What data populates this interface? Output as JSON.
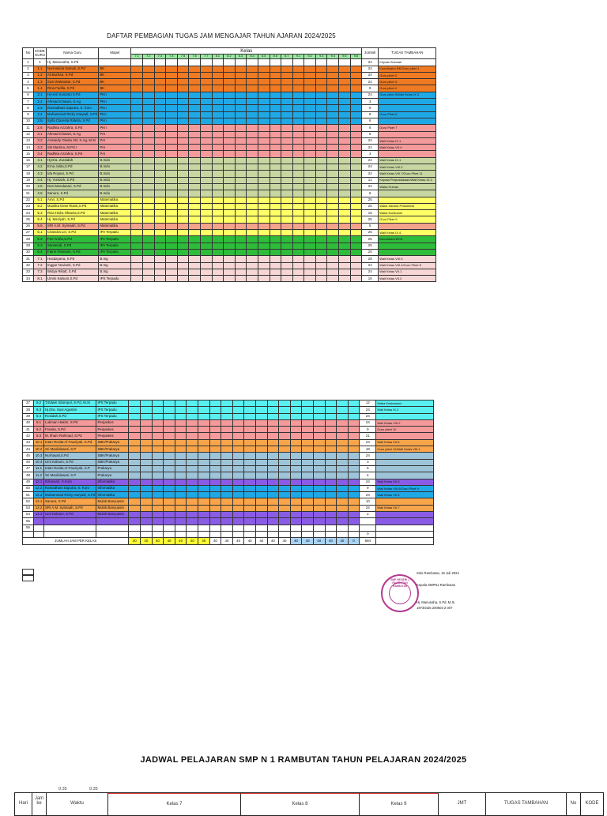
{
  "title": "DAFTAR PEMBAGIAN TUGAS JAM MENGAJAR TAHUN AJARAN 2024/2025",
  "headers": {
    "no": "No",
    "kode_guru": "KODE GURU",
    "nama_guru": "Nama Guru",
    "mapel": "Mapel",
    "kelas": "Kelas",
    "jumlah": "Jumlah",
    "tugas_tambahan": "TUGAS TAMBAHAN",
    "kelas_list": [
      "7.1",
      "7.2",
      "7.3",
      "7.4",
      "7.5",
      "7.6",
      "7.7",
      "8.1",
      "8.2",
      "8.3",
      "8.4",
      "8.5",
      "8.6",
      "8.7",
      "9.1",
      "9.2",
      "9.3",
      "9.4",
      "9.5",
      "9.6"
    ]
  },
  "rows_top": [
    {
      "no": "1",
      "kode": "1",
      "nama": "Hj. Manunaha, S.Pd",
      "mapel": "",
      "color": "#ffffff",
      "cells": {},
      "jumlah": "24",
      "tugas": "Kepala Sekolah"
    },
    {
      "no": "2",
      "kode": "1.1",
      "nama": "Nurmasida Nainali, S.Pd",
      "mapel": "BK",
      "color": "#f07a22",
      "cells": {
        "8.1": "v",
        "8.2": "v",
        "8.3": "v",
        "8.4": "v",
        "8.5": "v",
        "8.6": "v"
      },
      "jumlah": "24",
      "tugas": "Koordinator BK/Guru piket 1"
    },
    {
      "no": "3",
      "kode": "1.2",
      "nama": "Ali Burhan, S.Pd",
      "mapel": "BK",
      "color": "#f07a22",
      "cells": {
        "8.7": "v",
        "9.1": "v",
        "9.2": "v",
        "9.3": "v",
        "9.4": "v",
        "9.5": "v"
      },
      "jumlah": "24",
      "tugas": "Guru piket 2"
    },
    {
      "no": "4",
      "kode": "1.3",
      "nama": "Susi Wulandari, S.Pd",
      "mapel": "BK",
      "color": "#f07a22",
      "cells": {
        "7.1": "v",
        "7.2": "v",
        "7.3": "v",
        "7.4": "v",
        "7.5": "v"
      },
      "jumlah": "24",
      "tugas": "Guru piket 3"
    },
    {
      "no": "5",
      "kode": "1.4",
      "nama": "Rina Fadila, S.Pd",
      "mapel": "BK",
      "color": "#f07a22",
      "cells": {
        "7.6": "v",
        "7.7": "v"
      },
      "jumlah": "9",
      "tugas": "Guru piket 4"
    },
    {
      "no": "6",
      "kode": "2.1",
      "nama": "Hj Heri Susanto S.Pd",
      "mapel": "PKn",
      "color": "#1fa8e6",
      "cells": {
        "8.1": "3",
        "8.2": "3",
        "8.3": "3",
        "8.4": "3",
        "9.1": "3",
        "9.2": "3",
        "9.3": "3",
        "9.4": "3"
      },
      "jumlah": "24",
      "tugas": "Guru piket 5/Wali Kelas IX.3"
    },
    {
      "no": "7",
      "kode": "2.2",
      "nama": "Ahmad Ichwani, S.Ag",
      "mapel": "PKn",
      "color": "#1fa8e6",
      "cells": {
        "8.7": "3"
      },
      "jumlah": "3",
      "tugas": ""
    },
    {
      "no": "8",
      "kode": "2.3",
      "nama": "Ramadhani Saputra, S. Kom",
      "mapel": "PKn",
      "color": "#1fa8e6",
      "cells": {
        "7.4": "3",
        "7.6": "3",
        "7.7": "3"
      },
      "jumlah": "9",
      "tugas": ""
    },
    {
      "no": "9",
      "kode": "2.4",
      "nama": "Muhammad Ricky Haryadi, S.Pd",
      "mapel": "PKn",
      "color": "#1fa8e6",
      "cells": {
        "7.2": "3",
        "7.3": "3",
        "7.5": "3"
      },
      "jumlah": "9",
      "tugas": "Guru Piket 6"
    },
    {
      "no": "10",
      "kode": "2.5",
      "nama": "Syifa Claresta Ridella, S.Pd",
      "mapel": "PKn",
      "color": "#1fa8e6",
      "cells": {
        "8.6": "3",
        "8.7": "3"
      },
      "jumlah": "6",
      "tugas": ""
    },
    {
      "no": "11",
      "kode": "2.6",
      "nama": "Radhita Azzahra, S.Pd",
      "mapel": "PKn",
      "color": "#f59a9a",
      "cells": {
        "7.1": "3",
        "8.6": "3"
      },
      "jumlah": "6",
      "tugas": "Guru Piket 7"
    },
    {
      "no": "12",
      "kode": "3.1",
      "nama": "Ahmad Ichwani, S.Ag",
      "mapel": "PAI",
      "color": "#f59a9a",
      "cells": {
        "8.1": "3",
        "8.6": "3"
      },
      "jumlah": "6",
      "tugas": ""
    },
    {
      "no": "13",
      "kode": "3.2",
      "nama": "Arsiandy Olusta JM, S.Ag, M.Si",
      "mapel": "PAI",
      "color": "#f59a9a",
      "cells": {
        "7.5": "3",
        "8.2": "3",
        "8.3": "3",
        "8.4": "3",
        "8.5": "3",
        "9.1": "3",
        "9.2": "3"
      },
      "jumlah": "24",
      "tugas": "Wali Kelas IX.1"
    },
    {
      "no": "14",
      "kode": "3.3",
      "nama": "Siti Martina, M.Pd.I",
      "mapel": "PAI",
      "color": "#f59a9a",
      "cells": {
        "7.1": "3",
        "7.2": "3",
        "7.3": "3",
        "7.4": "3",
        "8.6": "3",
        "9.3": "3",
        "9.4": "3",
        "9.5": "3"
      },
      "jumlah": "24",
      "tugas": "Wali Kelas VII.4"
    },
    {
      "no": "15",
      "kode": "3.4",
      "nama": "Radhita Azzahra, S.Pd",
      "mapel": "PAI",
      "color": "#f59a9a",
      "cells": {
        "7.6": "3"
      },
      "jumlah": "3",
      "tugas": ""
    },
    {
      "no": "16",
      "kode": "4.1",
      "nama": "Hj.Dra. Zuraidah",
      "mapel": "B.Indo",
      "color": "#c8d7a1",
      "cells": {
        "8.1": "6",
        "9.3": "6",
        "9.4": "6"
      },
      "jumlah": "24",
      "tugas": "Wali Kelas IX.1"
    },
    {
      "no": "17",
      "kode": "4.2",
      "nama": "Erna Julita,S.Pd",
      "mapel": "B.Indo",
      "color": "#c8d7a1",
      "cells": {
        "7.5": "6",
        "7.6": "6",
        "7.7": "6",
        "8.2": "6"
      },
      "jumlah": "24",
      "tugas": "Wali Kelas VIII.2"
    },
    {
      "no": "18",
      "kode": "4.3",
      "nama": "Ida Royani, S.Pd",
      "mapel": "B.Indo",
      "color": "#c8d7a1",
      "cells": {
        "8.3": "6",
        "8.5": "6",
        "8.6": "6",
        "8.7": "6"
      },
      "jumlah": "24",
      "tugas": "Wali Kelas VIII.7/Guru Piket 11"
    },
    {
      "no": "19",
      "kode": "4.4",
      "nama": "Hj. Yunizah, S.Pd",
      "mapel": "B.Indo",
      "color": "#c8d7a1",
      "cells": {
        "9.2": "6",
        "9.3": "6"
      },
      "jumlah": "12",
      "tugas": "Kepala Perpustakaan/Wali Kelas IX.3"
    },
    {
      "no": "20",
      "kode": "4.5",
      "nama": "Desi Mendasari, S.Pd",
      "mapel": "B.Indo",
      "color": "#c8d7a1",
      "cells": {
        "7.1": "6",
        "7.2": "6",
        "7.3": "6",
        "7.4": "6"
      },
      "jumlah": "24",
      "tugas": "Waka Humas"
    },
    {
      "no": "21",
      "kode": "4.6",
      "nama": "Sanura, S.Pd",
      "mapel": "B.Indo",
      "color": "#c8d7a1",
      "cells": {
        "8.6": "6"
      },
      "jumlah": "6",
      "tugas": ""
    },
    {
      "no": "22",
      "kode": "5.1",
      "nama": "Amri, S.Pd",
      "mapel": "Matematika",
      "color": "#ffff66",
      "cells": {
        "7.4": "5",
        "7.5": "5",
        "7.6": "5",
        "9.4": "5",
        "9.5": "5"
      },
      "jumlah": "25",
      "tugas": ""
    },
    {
      "no": "23",
      "kode": "5.2",
      "nama": "Mustika Dewi Rianti,S.Pd",
      "mapel": "Matematika",
      "color": "#ffff66",
      "cells": {
        "7.1": "5",
        "7.2": "5",
        "7.3": "5",
        "8.2": "5",
        "8.3": "5"
      },
      "jumlah": "25",
      "tugas": "Waka Sarana Prasarana"
    },
    {
      "no": "24",
      "kode": "5.3",
      "nama": "Riza Hidra Oktavia,S.Pd",
      "mapel": "Matematika",
      "color": "#ffff66",
      "cells": {
        "9.1": "5",
        "9.2": "5"
      },
      "jumlah": "15",
      "tugas": "Waka Kurikulum"
    },
    {
      "no": "25",
      "kode": "5.4",
      "nama": "Hj. Maziyah, S.Pd",
      "mapel": "Matematika",
      "color": "#ffff66",
      "cells": {
        "8.4": "5",
        "8.5": "5",
        "8.6": "5",
        "8.7": "5",
        "9.3": "5"
      },
      "jumlah": "25",
      "tugas": "Guru Piket 9"
    },
    {
      "no": "26",
      "kode": "5.5",
      "nama": "SRI A.M. Syimaah, S.Pd",
      "mapel": "Matematika",
      "color": "#f4a28c",
      "cells": {
        "7.7": "5"
      },
      "jumlah": "5",
      "tugas": ""
    },
    {
      "no": "27",
      "kode": "6.1",
      "nama": "Chandra Lei, S.Pd",
      "mapel": "IPA Terpadu",
      "color": "#ffff66",
      "cells": {
        "7.6": "5",
        "7.7": "5",
        "9.3": "5",
        "9.4": "5",
        "9.5": "5"
      },
      "jumlah": "25",
      "tugas": "Wali Kelas IX.4"
    },
    {
      "no": "28",
      "kode": "6.2",
      "nama": "Feri Arofia,S.Pd",
      "mapel": "IPA Terpadu",
      "color": "#2ebd3a",
      "cells": {
        "7.1": "5",
        "7.2": "5",
        "7.3": "5",
        "8.7": "5"
      },
      "jumlah": "25",
      "tugas": "Bendahara BOS"
    },
    {
      "no": "29",
      "kode": "6.3",
      "nama": "Sarwendi, S.Pd",
      "mapel": "IPA Terpadu",
      "color": "#2ebd3a",
      "cells": {
        "8.2": "5",
        "8.3": "5",
        "8.4": "5",
        "8.5": "5"
      },
      "jumlah": "25",
      "tugas": ""
    },
    {
      "no": "30",
      "kode": "6.4",
      "nama": "Fatrin Febrianti, S.Pd",
      "mapel": "IPA Terpadu",
      "color": "#2ebd3a",
      "cells": {
        "7.4": "5",
        "7.5": "5",
        "8.6": "5",
        "8.7": "5"
      },
      "jumlah": "20",
      "tugas": ""
    },
    {
      "no": "31",
      "kode": "7.1",
      "nama": "Husdayana, S.Pd",
      "mapel": "B.Ing",
      "color": "#f7d6d6",
      "cells": {
        "7.5": "4",
        "7.6": "4",
        "7.7": "4",
        "8.1": "4",
        "8.6": "4",
        "8.7": "4",
        "9.1": "4"
      },
      "jumlah": "28",
      "tugas": "Wali Kelas VIII.5"
    },
    {
      "no": "32",
      "kode": "7.2",
      "nama": "Inggar Novianti, S.Pd",
      "mapel": "B.Ing",
      "color": "#f7d6d6",
      "cells": {
        "8.3": "4",
        "8.4": "4",
        "8.5": "4",
        "9.1": "4",
        "9.2": "4",
        "9.3": "4"
      },
      "jumlah": "24",
      "tugas": "Wali Kelas VIII.4/Guru Piket 8"
    },
    {
      "no": "33",
      "kode": "7.3",
      "nama": "Widya Rikatl, S.Pd",
      "mapel": "B.Ing",
      "color": "#f7d6d6",
      "cells": {
        "7.1": "4",
        "7.2": "4",
        "7.3": "4",
        "7.4": "4",
        "9.4": "4",
        "9.5": "4"
      },
      "jumlah": "24",
      "tugas": "Wali Kelas VII.1"
    },
    {
      "no": "34",
      "kode": "8.1",
      "nama": "Ummi Kalsum,S.Pd",
      "mapel": "IPS Terpadu",
      "color": "#f7d6d6",
      "cells": {
        "7.1": "4",
        "7.2": "4",
        "8.6": "4",
        "8.7": "4"
      },
      "jumlah": "16",
      "tugas": "Wali Kelas VII.2"
    }
  ],
  "rows_bottom": [
    {
      "no": "37",
      "kode": "8.2",
      "nama": "T.Edwin Sitompul, S.Pd, M.Si",
      "mapel": "IPS Terpadu",
      "color": "#58f0f0",
      "cells": {
        "8.1": "4",
        "9.4": "4",
        "9.5": "4"
      },
      "jumlah": "12",
      "tugas": "Waka Kesiswaan"
    },
    {
      "no": "38",
      "kode": "8.3",
      "nama": "Hj.Dra. Susi Agustini",
      "mapel": "IPS Terpadu",
      "color": "#58f0f0",
      "cells": {
        "8.2": "4",
        "8.3": "4",
        "8.4": "4",
        "9.1": "4",
        "9.2": "4",
        "9.3": "4"
      },
      "jumlah": "24",
      "tugas": "Wali Kelas IX.2"
    },
    {
      "no": "39",
      "kode": "8.4",
      "nama": "Rosidah,S.Pd",
      "mapel": "IPS Terpadu",
      "color": "#58f0f0",
      "cells": {
        "7.3": "4",
        "7.4": "4",
        "7.5": "4",
        "7.6": "4",
        "7.7": "4",
        "8.5": "4"
      },
      "jumlah": "24",
      "tugas": ""
    },
    {
      "no": "40",
      "kode": "9.1",
      "nama": "Lukman Hakim, S.Pd",
      "mapel": "Penjaskes",
      "color": "#f59a9a",
      "cells": {
        "8.2": "3",
        "8.3": "3",
        "8.4": "3",
        "8.5": "3",
        "8.6": "3",
        "9.1": "3",
        "9.2": "3",
        "9.3": "3"
      },
      "jumlah": "24",
      "tugas": "Wali Kelas VIII.2"
    },
    {
      "no": "41",
      "kode": "9.2",
      "nama": "Franita, S.Pd",
      "mapel": "Penjaskes",
      "color": "#f59a9a",
      "cells": {
        "7.7": "3",
        "8.7": "3",
        "9.1": "3"
      },
      "jumlah": "9",
      "tugas": "Guru piket 10"
    },
    {
      "no": "42",
      "kode": "9.3",
      "nama": "M. Ilham Rahmad, S.Pd",
      "mapel": "Penjaskes",
      "color": "#f59a9a",
      "cells": {
        "7.1": "3",
        "7.2": "3",
        "7.3": "3",
        "7.4": "3",
        "7.5": "3",
        "9.4": "3",
        "9.5": "3"
      },
      "jumlah": "21",
      "tugas": ""
    },
    {
      "no": "43",
      "kode": "10.1",
      "nama": "Intan Rosita Al Fauziyah, S.Pd",
      "mapel": "SBK/Prakarya",
      "color": "#f7a44a",
      "cells": {
        "7.4": "3",
        "7.5": "3",
        "7.6": "3"
      },
      "jumlah": "24",
      "tugas": "Wali Kelas VII.6"
    },
    {
      "no": "44",
      "kode": "10.2",
      "nama": "Sri Maulidawati, S.P",
      "mapel": "SBK/Prakarya",
      "color": "#f7a44a",
      "cells": {
        "8.1": "3",
        "8.2": "3",
        "8.3": "3",
        "8.4": "3",
        "8.5": "3",
        "8.6": "3"
      },
      "jumlah": "18",
      "tugas": "Guru piket 12/Wali Kelas VIII.1"
    },
    {
      "no": "45",
      "kode": "10.3",
      "nama": "Nurhayati,S.Pd",
      "mapel": "SBK/Prakarya",
      "color": "#9ec4d9",
      "cells": {
        "7.1": "3",
        "7.2": "3",
        "7.3": "3",
        "9.1": "3",
        "9.2": "3",
        "9.3": "3",
        "9.4": "3",
        "9.5": "3"
      },
      "jumlah": "24",
      "tugas": ""
    },
    {
      "no": "46",
      "kode": "10.4",
      "nama": "Umi Kalsum, S.Pd",
      "mapel": "SBK/Prakarya",
      "color": "#9ec4d9",
      "cells": {},
      "jumlah": "3",
      "tugas": ""
    },
    {
      "no": "47",
      "kode": "11.1",
      "nama": "Intan Rosita Al Fauziyah, S.P",
      "mapel": "Prakarya",
      "color": "#9ec4d9",
      "cells": {
        "9.1": "2",
        "9.2": "2",
        "9.3": "2"
      },
      "jumlah": "6",
      "tugas": ""
    },
    {
      "no": "48",
      "kode": "11.2",
      "nama": "Sri Maulidawati, S.P",
      "mapel": "Prakarya",
      "color": "#9ec4d9",
      "cells": {
        "9.4": "2",
        "9.5": "2"
      },
      "jumlah": "4",
      "tugas": ""
    },
    {
      "no": "49",
      "kode": "12.1",
      "nama": "Erliansah, S.Kom",
      "mapel": "Informatika",
      "color": "#8a5ce6",
      "cells": {
        "7.1": "3",
        "7.2": "3",
        "7.3": "3",
        "7.4": "3",
        "7.5": "3",
        "7.6": "3",
        "8.1": "3",
        "8.7": "3"
      },
      "jumlah": "24",
      "tugas": "Wali Kelas VII.3"
    },
    {
      "no": "50",
      "kode": "12.2",
      "nama": "Ramadhani Saputra, S. Kom",
      "mapel": "Informatika",
      "color": "#1fa8e6",
      "cells": {
        "8.3": "3",
        "8.4": "3",
        "8.5": "3"
      },
      "jumlah": "9",
      "tugas": "Wali Kelas VIII.6/Guru Piket 9"
    },
    {
      "no": "51",
      "kode": "12.3",
      "nama": "Muhammad Ricky Haryadi, S.Pd",
      "mapel": "Informatika",
      "color": "#1fa8e6",
      "cells": {
        "8.1": "3",
        "8.2": "3",
        "8.6": "3"
      },
      "jumlah": "24",
      "tugas": "Wali Kelas VII.5"
    },
    {
      "no": "52",
      "kode": "13.1",
      "nama": "Sanura, S.Pd",
      "mapel": "Mulok Banyuasin",
      "color": "#f7a44a",
      "cells": {
        "9.1": "2",
        "9.2": "2",
        "9.3": "2",
        "9.4": "2",
        "9.5": "2"
      },
      "jumlah": "10",
      "tugas": ""
    },
    {
      "no": "53",
      "kode": "13.2",
      "nama": "SRI A.M. Syimaah, S.Pd",
      "mapel": "Mulok Banyuasin",
      "color": "#f7a44a",
      "cells": {
        "7.1": "1",
        "7.2": "1",
        "7.3": "1",
        "7.4": "1",
        "7.5": "1",
        "7.6": "1",
        "7.7": "1",
        "8.1": "1",
        "8.2": "1",
        "8.3": "1",
        "8.4": "1",
        "8.5": "1"
      },
      "jumlah": "24",
      "tugas": "Wali Kelas VII.7"
    },
    {
      "no": "54",
      "kode": "13.3",
      "nama": "Umi Kalsum, S.Pd",
      "mapel": "Mulok Banyuasin",
      "color": "#8a5ce6",
      "cells": {
        "8.6": "1",
        "8.7": "1"
      },
      "jumlah": "2",
      "tugas": ""
    },
    {
      "no": "55",
      "kode": "",
      "nama": "",
      "mapel": "",
      "color": "#8a5ce6",
      "cells": {},
      "jumlah": "",
      "tugas": ""
    },
    {
      "no": "56",
      "kode": "",
      "nama": "",
      "mapel": "",
      "color": "#ffffff",
      "cells": {},
      "jumlah": "",
      "tugas": ""
    },
    {
      "no": "",
      "kode": "",
      "nama": "",
      "mapel": "",
      "color": "#ffffff",
      "cells": {},
      "jumlah": "0",
      "tugas": ""
    }
  ],
  "totals": {
    "label": "JUMLAH JAM PER KELAS",
    "values": [
      "40",
      "40",
      "40",
      "40",
      "40",
      "40",
      "40",
      "40",
      "40",
      "40",
      "40",
      "40",
      "40",
      "40",
      "40",
      "40",
      "40",
      "40",
      "40",
      "0"
    ],
    "jumlah": "894"
  },
  "signature": {
    "place_date": "Solo Rambutan, 15 Juli 2024",
    "role": "Kepala SMPN1 Rambutan",
    "name": "Hj. Manunaha, S.Pd, M.Si",
    "nip": "19730425 200604 2 007",
    "stamp_outer": "SMP NEGERI 1 RAMBUTAN",
    "stamp_inner": "RAMBUTAN"
  },
  "schedule": {
    "title": "JADWAL PELAJARAN SMP N 1 RAMBUTAN TAHUN PELAJARAN 2024/2025",
    "time_a": "0:35",
    "time_b": "0:35",
    "hari": "Hari",
    "jam_ke": "Jam ke",
    "waktu": "Waktu",
    "kelas7": "Kelas 7",
    "kelas8": "Kelas 8",
    "kelas9": "Kelas 9",
    "jmt": "JMT",
    "tugas": "TUGAS TAMBAHAN",
    "no": "No",
    "kode": "KODE"
  }
}
